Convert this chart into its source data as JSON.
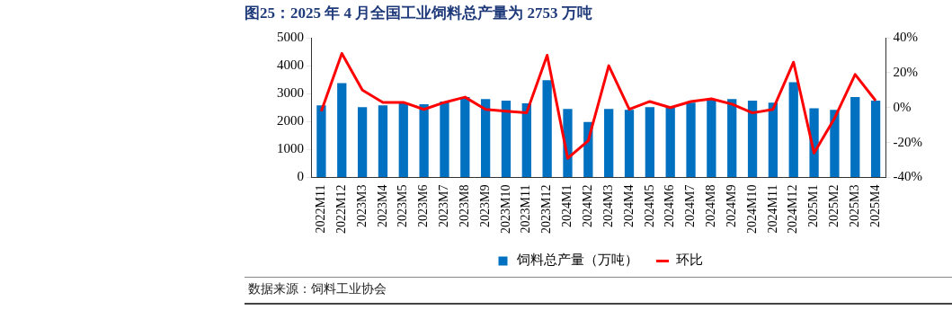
{
  "chart_data": {
    "type": "bar",
    "title": "图25：2025 年 4 月全国工业饲料总产量为 2753 万吨",
    "categories": [
      "2022M11",
      "2022M12",
      "2023M3",
      "2023M4",
      "2023M5",
      "2023M6",
      "2023M7",
      "2023M8",
      "2023M9",
      "2023M10",
      "2023M11",
      "2023M12",
      "2024M1",
      "2024M2",
      "2024M3",
      "2024M4",
      "2024M5",
      "2024M6",
      "2024M7",
      "2024M8",
      "2024M9",
      "2024M10",
      "2024M11",
      "2024M12",
      "2025M1",
      "2025M2",
      "2025M3",
      "2025M4"
    ],
    "series": [
      {
        "name": "饲料总产量（万吨）",
        "color": "#0070c0",
        "values": [
          2580,
          3380,
          2520,
          2580,
          2680,
          2620,
          2720,
          2880,
          2810,
          2750,
          2650,
          3480,
          2450,
          1990,
          2450,
          2420,
          2520,
          2520,
          2680,
          2780,
          2810,
          2750,
          2680,
          3410,
          2480,
          2420,
          2880,
          2753
        ]
      },
      {
        "name": "环比",
        "type": "line",
        "axis": "y2",
        "color": "#ff0000",
        "values": [
          -2,
          31,
          10,
          3,
          3,
          -1,
          3,
          6,
          -1,
          -2,
          -3,
          30,
          -29,
          -19,
          24,
          -1,
          3.5,
          0,
          3.5,
          5,
          2,
          -3,
          -1,
          26,
          -26,
          -6,
          19,
          4
        ]
      }
    ],
    "ylim": [
      0,
      5000
    ],
    "yticks": [
      0,
      1000,
      2000,
      3000,
      4000,
      5000
    ],
    "y2lim": [
      -40,
      40
    ],
    "y2ticks": [
      {
        "value": -40,
        "label": "-40%"
      },
      {
        "value": -20,
        "label": "-20%"
      },
      {
        "value": 0,
        "label": "0%"
      },
      {
        "value": 20,
        "label": "20%"
      },
      {
        "value": 40,
        "label": "40%"
      }
    ],
    "grid": false,
    "legend": "bottom",
    "marker": "none",
    "line_style": "solid",
    "annotations": [
      "数据来源：饲料工业协会"
    ]
  }
}
